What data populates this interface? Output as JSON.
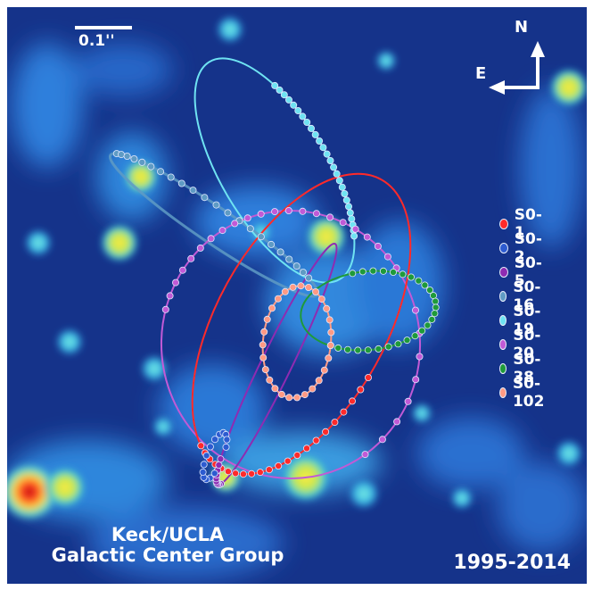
{
  "scale_bar_label": "0.1''",
  "compass": {
    "north": "N",
    "east": "E"
  },
  "credit": {
    "line1": "Keck/UCLA",
    "line2": "Galactic Center Group"
  },
  "date_range": "1995-2014",
  "legend": [
    {
      "name": "S0-1",
      "color": "#ff2a2a"
    },
    {
      "name": "S0-2",
      "color": "#2d5bd0"
    },
    {
      "name": "S0-5",
      "color": "#8e2bb2"
    },
    {
      "name": "S0-16",
      "color": "#5f9bc4"
    },
    {
      "name": "S0-19",
      "color": "#6fe3f2"
    },
    {
      "name": "S0-20",
      "color": "#c15ad6"
    },
    {
      "name": "S0-38",
      "color": "#1f9a3a"
    },
    {
      "name": "S0-102",
      "color": "#ff9a84"
    }
  ]
}
